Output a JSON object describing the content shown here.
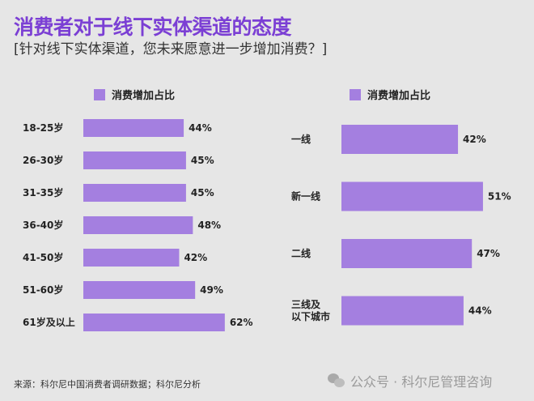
{
  "title": "消费者对于线下实体渠道的态度",
  "subtitle": "[针对线下实体渠道，您未来愿意进一步增加消费？]",
  "source": "来源：科尔尼中国消费者调研数据；科尔尼分析",
  "watermark": "公众号 · 科尔尼管理咨询",
  "colors": {
    "bar": "#a47fe0",
    "title": "#7b3fd4",
    "background": "#e6e6e6"
  },
  "chart_data": [
    {
      "type": "bar",
      "orientation": "horizontal",
      "title": "",
      "legend": [
        "消费增加占比"
      ],
      "legend_position": "top",
      "categories": [
        "18-25岁",
        "26-30岁",
        "31-35岁",
        "36-40岁",
        "41-50岁",
        "51-60岁",
        "61岁及以上"
      ],
      "values": [
        44,
        45,
        45,
        48,
        42,
        49,
        62
      ],
      "value_labels": [
        "44%",
        "45%",
        "45%",
        "48%",
        "42%",
        "49%",
        "62%"
      ],
      "unit": "%"
    },
    {
      "type": "bar",
      "orientation": "horizontal",
      "title": "",
      "legend": [
        "消费增加占比"
      ],
      "legend_position": "top",
      "categories": [
        "一线",
        "新一线",
        "二线",
        "三线及\n以下城市"
      ],
      "values": [
        42,
        51,
        47,
        44
      ],
      "value_labels": [
        "42%",
        "51%",
        "47%",
        "44%"
      ],
      "unit": "%"
    }
  ]
}
